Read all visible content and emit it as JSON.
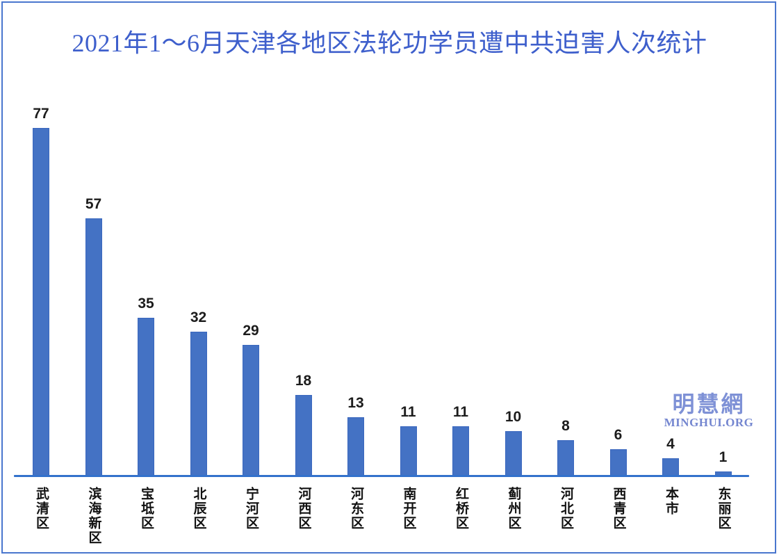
{
  "page": {
    "title": "2021年1～6月天津各地区法轮功学员遭中共迫害人次统计"
  },
  "watermark": {
    "name": "明慧網",
    "site": "MINGHUI.ORG",
    "color": "#7E91D6"
  },
  "chart_data": {
    "type": "bar",
    "title": "2021年1～6月天津各地区法轮功学员遭中共迫害人次统计",
    "categories": [
      "武清区",
      "滨海新区",
      "宝坻区",
      "北辰区",
      "宁河区",
      "河西区",
      "河东区",
      "南开区",
      "红桥区",
      "蓟州区",
      "河北区",
      "西青区",
      "本市",
      "东丽区"
    ],
    "values": [
      77,
      57,
      35,
      32,
      29,
      18,
      13,
      11,
      11,
      10,
      8,
      6,
      4,
      1
    ],
    "xlabel": "",
    "ylabel": "",
    "ylim": [
      0,
      80
    ],
    "grid": false,
    "legend": false,
    "value_labels_shown": true,
    "category_label_orientation": "vertical-stacked",
    "bar_color": "#4472C4",
    "bar_edge_color": "#3A67BE",
    "axis_line_color": "#3372CC",
    "title_color": "#3E5FCC",
    "value_label_color": "#1C1C1C",
    "page_border_color": "#4976CE"
  }
}
